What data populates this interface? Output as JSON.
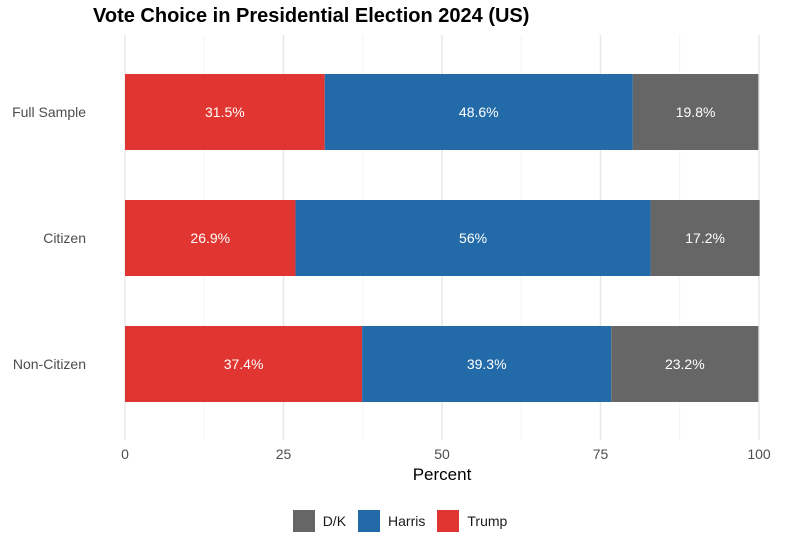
{
  "chart_data": {
    "type": "bar",
    "orientation": "horizontal",
    "stacked": true,
    "title": "Vote Choice in Presidential Election 2024 (US)",
    "xlabel": "Percent",
    "ylabel": "",
    "xlim": [
      0,
      100
    ],
    "xticks": [
      0,
      25,
      50,
      75,
      100
    ],
    "grid": true,
    "legend_position": "bottom",
    "categories": [
      "Full Sample",
      "Citizen",
      "Non-Citizen"
    ],
    "series": [
      {
        "name": "Trump",
        "color": "#e03531",
        "values": [
          31.5,
          26.9,
          37.4
        ],
        "labels": [
          "31.5%",
          "26.9%",
          "37.4%"
        ]
      },
      {
        "name": "Harris",
        "color": "#236ba8",
        "values": [
          48.6,
          56,
          39.3
        ],
        "labels": [
          "48.6%",
          "56%",
          "39.3%"
        ]
      },
      {
        "name": "D/K",
        "color": "#666666",
        "values": [
          19.8,
          17.2,
          23.2
        ],
        "labels": [
          "19.8%",
          "17.2%",
          "23.2%"
        ]
      }
    ],
    "legend_order": [
      "D/K",
      "Harris",
      "Trump"
    ]
  }
}
